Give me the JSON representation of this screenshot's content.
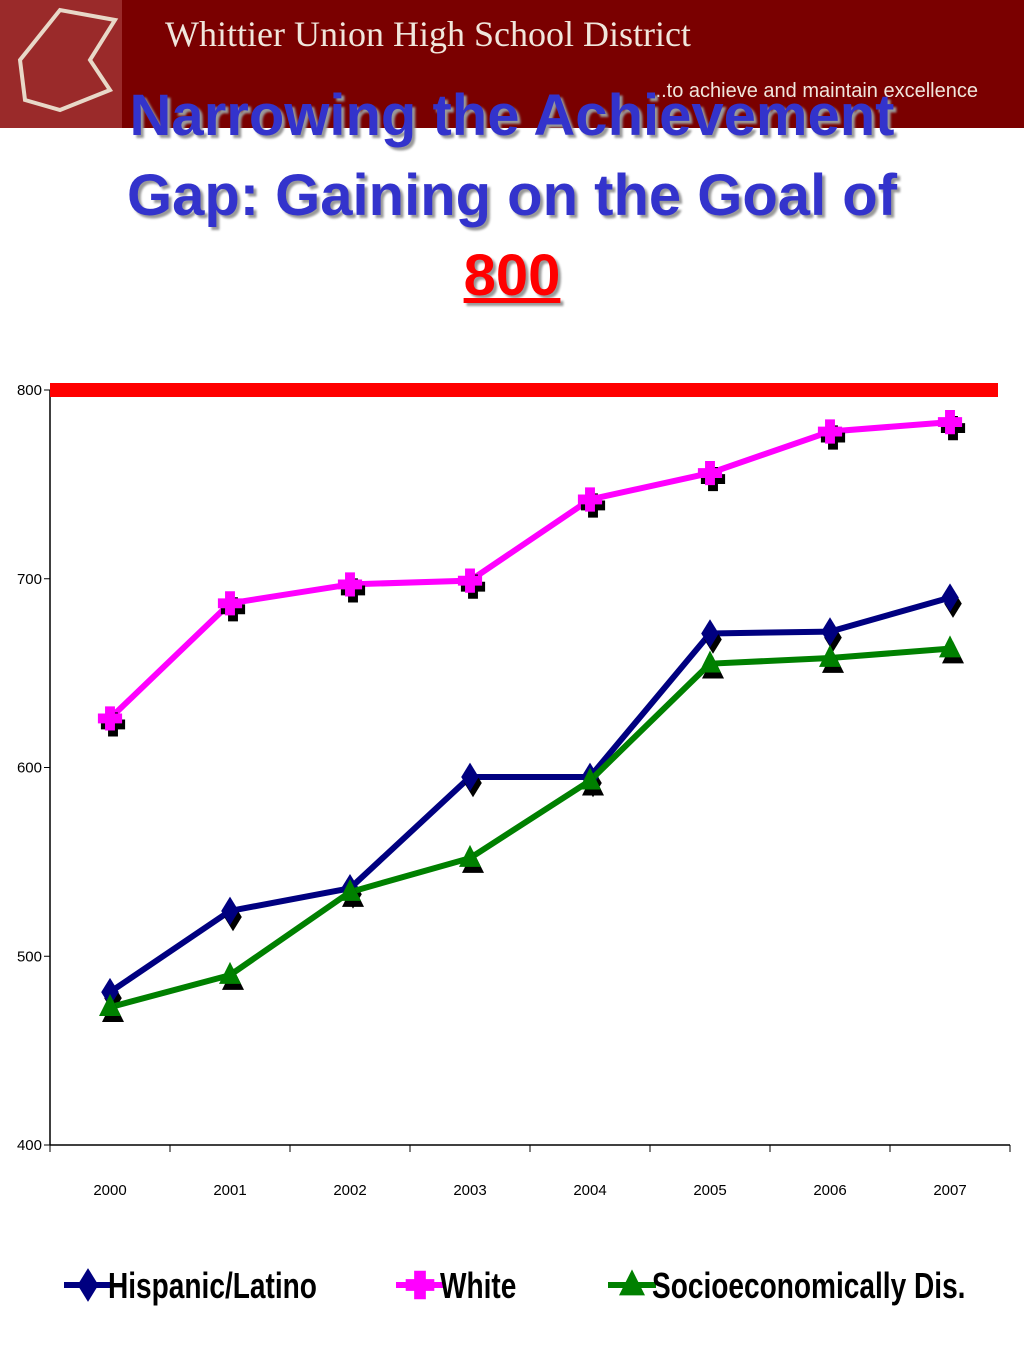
{
  "header": {
    "title": "Whittier Union High School District",
    "tagline": "...to achieve and maintain excellence"
  },
  "chart_data": {
    "type": "line",
    "title": "Narrowing the Achievement Gap: Gaining on the Goal of",
    "goal": 800,
    "goal_color": "#ff0000",
    "categories": [
      "2000",
      "2001",
      "2002",
      "2003",
      "2004",
      "2005",
      "2006",
      "2007"
    ],
    "series": [
      {
        "name": "Hispanic/Latino",
        "color": "#000080",
        "marker": "diamond",
        "values": [
          481,
          524,
          536,
          595,
          595,
          671,
          672,
          690
        ]
      },
      {
        "name": "White",
        "color": "#ff00ff",
        "marker": "square",
        "values": [
          626,
          687,
          697,
          699,
          742,
          756,
          778,
          783
        ]
      },
      {
        "name": "Socioeconomically Dis.",
        "color": "#008000",
        "marker": "triangle",
        "values": [
          473,
          490,
          534,
          552,
          593,
          655,
          658,
          663
        ]
      }
    ],
    "ylim": [
      400,
      800
    ],
    "yticks": [
      400,
      500,
      600,
      700,
      800
    ],
    "grid": false,
    "legend": "bottom"
  }
}
